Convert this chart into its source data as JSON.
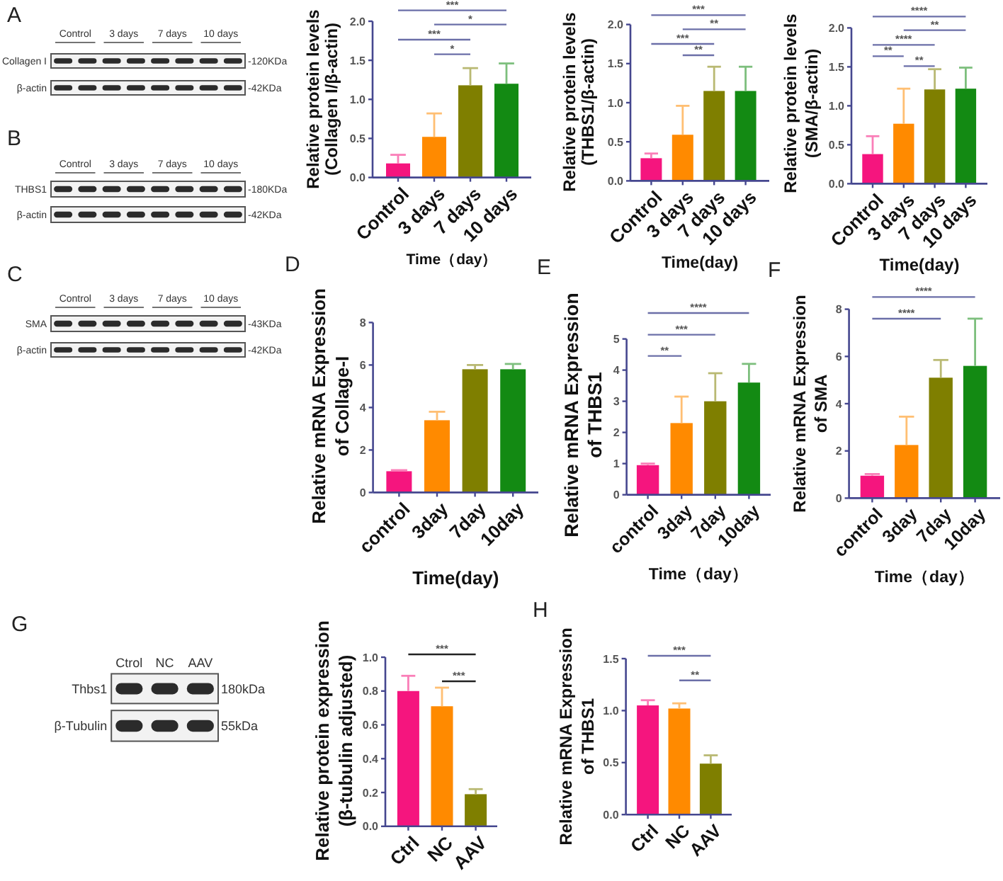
{
  "chart_data": [
    {
      "type": "other",
      "title": "A",
      "categories": [
        "Control",
        "3 days",
        "7 days",
        "10 days"
      ],
      "y_categories": [
        "Collagen I",
        "β-actin"
      ],
      "y2_categories": [
        "-120KDa",
        "-42KDa"
      ]
    },
    {
      "type": "bar",
      "categories": [
        "Control",
        "3 days",
        "7 days",
        "10 days"
      ],
      "values": [
        0.18,
        0.52,
        1.18,
        1.2
      ],
      "colors": [
        "#f5157e",
        "#ff8a00",
        "#7f7f00",
        "#138a13"
      ],
      "errors": [
        [
          0.18,
          0.29
        ],
        [
          0.52,
          0.82
        ],
        [
          1.18,
          1.4
        ],
        [
          1.2,
          1.46
        ]
      ],
      "ylim": [
        0,
        2
      ],
      "yticks": [
        {
          "value": 0,
          "label": "0.0"
        },
        0.5,
        {
          "value": 1,
          "label": "1.0"
        },
        1.5,
        {
          "value": 2,
          "label": "2.0"
        }
      ],
      "ylabel": "Relative protein levels\n(Collagen I/β-actin)",
      "xlabel": "Time（day）",
      "annotations": [
        "***",
        "*",
        "***",
        "*"
      ]
    },
    {
      "type": "bar",
      "categories": [
        "Control",
        "3 days",
        "7 days",
        "10 days"
      ],
      "values": [
        0.29,
        0.59,
        1.15,
        1.15
      ],
      "colors": [
        "#f5157e",
        "#ff8a00",
        "#7f7f00",
        "#138a13"
      ],
      "errors": [
        [
          0.29,
          0.35
        ],
        [
          0.59,
          0.96
        ],
        [
          1.15,
          1.46
        ],
        [
          1.15,
          1.46
        ]
      ],
      "ylim": [
        0,
        2
      ],
      "yticks": [
        {
          "value": 0,
          "label": "0.0"
        },
        0.5,
        {
          "value": 1,
          "label": "1.0"
        },
        1.5,
        {
          "value": 2,
          "label": "2.0"
        }
      ],
      "ylabel": "Relative protein levels\n(THBS1/β-actin)",
      "xlabel": "Time(day)",
      "annotations": [
        "***",
        "**",
        "***",
        "**"
      ]
    },
    {
      "type": "bar",
      "categories": [
        "Control",
        "3 days",
        "7 days",
        "10 days"
      ],
      "values": [
        0.38,
        0.77,
        1.21,
        1.22
      ],
      "colors": [
        "#f5157e",
        "#ff8a00",
        "#7f7f00",
        "#138a13"
      ],
      "errors": [
        [
          0.38,
          0.61
        ],
        [
          0.77,
          1.22
        ],
        [
          1.21,
          1.47
        ],
        [
          1.22,
          1.49
        ]
      ],
      "ylim": [
        0,
        2
      ],
      "yticks": [
        {
          "value": 0,
          "label": "0.0"
        },
        0.5,
        {
          "value": 1,
          "label": "1.0"
        },
        1.5,
        {
          "value": 2,
          "label": "2.0"
        }
      ],
      "ylabel": "Relative protein levels\n(SMA/β-actin)",
      "xlabel": "Time(day)",
      "annotations": [
        "****",
        "**",
        "****",
        "**",
        "**"
      ]
    },
    {
      "type": "other",
      "title": "B",
      "categories": [
        "Control",
        "3 days",
        "7 days",
        "10 days"
      ],
      "y_categories": [
        "THBS1",
        "β-actin"
      ],
      "y2_categories": [
        "-180KDa",
        "-42KDa"
      ]
    },
    {
      "type": "other",
      "title": "C",
      "categories": [
        "Control",
        "3 days",
        "7 days",
        "10 days"
      ],
      "y_categories": [
        "SMA",
        "β-actin"
      ],
      "y2_categories": [
        "-43KDa",
        "-42KDa"
      ]
    },
    {
      "type": "bar",
      "title": "D",
      "categories": [
        "control",
        "3day",
        "7day",
        "10day"
      ],
      "values": [
        1,
        3.4,
        5.8,
        5.8
      ],
      "colors": [
        "#f5157e",
        "#ff8a00",
        "#7f7f00",
        "#138a13"
      ],
      "errors": [
        [
          1,
          1.05
        ],
        [
          3.4,
          3.8
        ],
        [
          5.8,
          6
        ],
        [
          5.8,
          6.05
        ]
      ],
      "ylim": [
        0,
        8
      ],
      "yticks": [
        0,
        2,
        4,
        6,
        8
      ],
      "ylabel": "Relative mRNA Expression\nof Collage-I",
      "xlabel": "Time(day)"
    },
    {
      "type": "bar",
      "title": "E",
      "categories": [
        "control",
        "3day",
        "7day",
        "10day"
      ],
      "values": [
        0.95,
        2.3,
        3,
        3.6
      ],
      "colors": [
        "#f5157e",
        "#ff8a00",
        "#7f7f00",
        "#138a13"
      ],
      "errors": [
        [
          0.95,
          1
        ],
        [
          2.3,
          3.15
        ],
        [
          3,
          3.9
        ],
        [
          3.6,
          4.2
        ]
      ],
      "ylim": [
        0,
        5
      ],
      "yticks": [
        0,
        1,
        2,
        3,
        4,
        5
      ],
      "ylabel": "Relative mRNA Expression\nof THBS1",
      "xlabel": "Time（day）",
      "annotations": [
        "****",
        "***",
        "**"
      ]
    },
    {
      "type": "bar",
      "title": "F",
      "categories": [
        "control",
        "3day",
        "7day",
        "10day"
      ],
      "values": [
        0.95,
        2.25,
        5.1,
        5.6
      ],
      "colors": [
        "#f5157e",
        "#ff8a00",
        "#7f7f00",
        "#138a13"
      ],
      "errors": [
        [
          0.95,
          1.02
        ],
        [
          2.25,
          3.45
        ],
        [
          5.1,
          5.85
        ],
        [
          5.6,
          7.6
        ]
      ],
      "ylim": [
        0,
        8
      ],
      "yticks": [
        0,
        2,
        4,
        6,
        8
      ],
      "ylabel": "Relative mRNA Expression\nof SMA",
      "xlabel": "Time（day）",
      "annotations": [
        "****",
        "****"
      ]
    },
    {
      "type": "other",
      "title": "G",
      "categories": [
        "Ctrol",
        "NC",
        "AAV"
      ],
      "y_categories": [
        "Thbs1",
        "β-Tubulin"
      ],
      "y2_categories": [
        "180kDa",
        "55kDa"
      ]
    },
    {
      "type": "bar",
      "categories": [
        "Ctrl",
        "NC",
        "AAV"
      ],
      "values": [
        0.8,
        0.71,
        0.19
      ],
      "colors": [
        "#f5157e",
        "#ff8a00",
        "#7f7f00"
      ],
      "errors": [
        [
          0.8,
          0.89
        ],
        [
          0.71,
          0.82
        ],
        [
          0.19,
          0.22
        ]
      ],
      "ylim": [
        0,
        1
      ],
      "yticks": [
        {
          "value": 0,
          "label": "0.0"
        },
        0.2,
        0.4,
        0.6,
        0.8,
        {
          "value": 1,
          "label": "1.0"
        }
      ],
      "ylabel": "Relative protein expression\n(β-tubulin adjusted)",
      "annotations": [
        "***",
        "***"
      ]
    },
    {
      "type": "bar",
      "title": "H",
      "categories": [
        "Ctrl",
        "NC",
        "AAV"
      ],
      "values": [
        1.05,
        1.02,
        0.49
      ],
      "colors": [
        "#f5157e",
        "#ff8a00",
        "#7f7f00"
      ],
      "errors": [
        [
          1.05,
          1.1
        ],
        [
          1.02,
          1.07
        ],
        [
          0.49,
          0.57
        ]
      ],
      "ylim": [
        0,
        1.5
      ],
      "yticks": [
        {
          "value": 0,
          "label": "0.0"
        },
        0.5,
        {
          "value": 1,
          "label": "1.0"
        },
        1.5
      ],
      "ylabel": "Relative mRNA Expression\nof THBS1",
      "annotations": [
        "***",
        "**"
      ]
    }
  ]
}
